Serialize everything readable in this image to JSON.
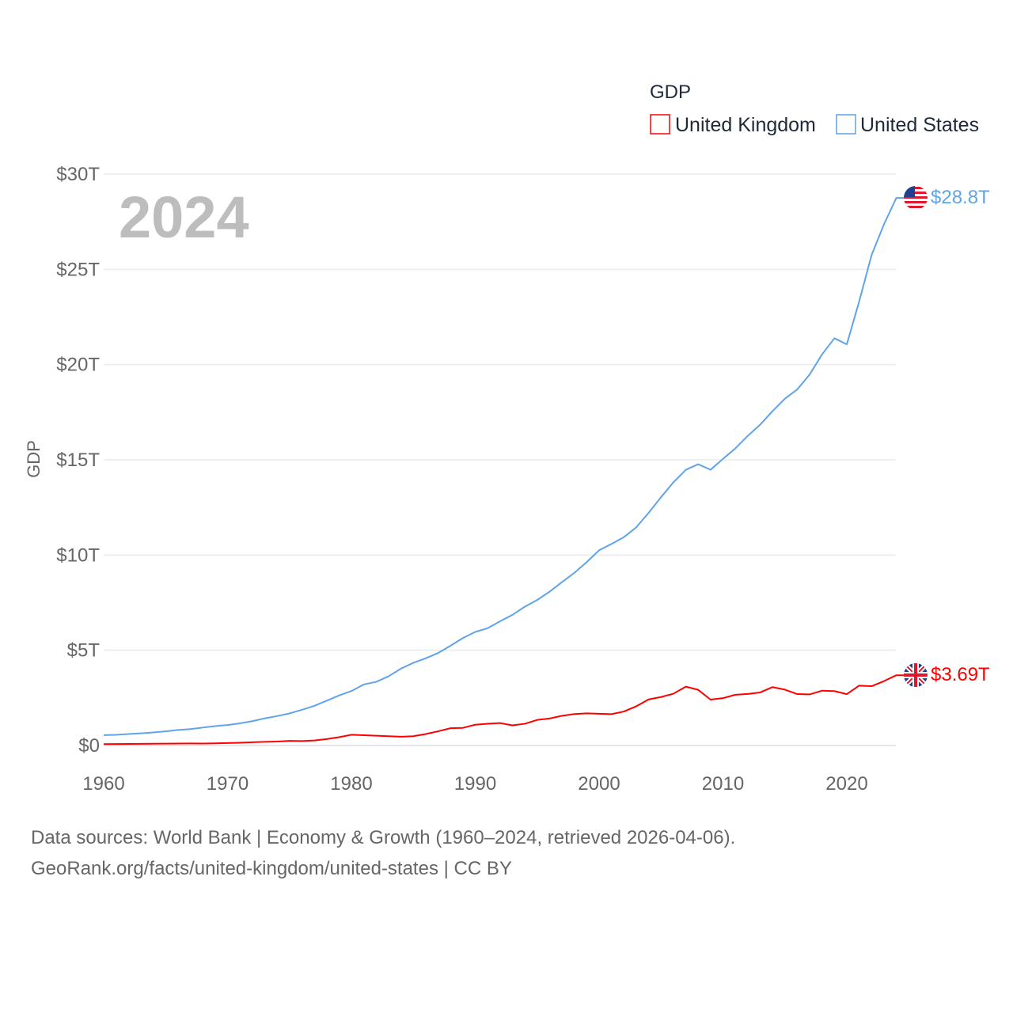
{
  "chart_data": {
    "type": "line",
    "title": "GDP",
    "year_label": "2024",
    "xlabel": "",
    "ylabel": "GDP",
    "xlim": [
      1960,
      2024
    ],
    "ylim": [
      0,
      30
    ],
    "grid": true,
    "legend_title": "GDP",
    "legend_position": "top-right",
    "x_ticks": [
      "1960",
      "1970",
      "1980",
      "1990",
      "2000",
      "2010",
      "2020"
    ],
    "y_ticks": [
      {
        "v": 0,
        "label": "$0"
      },
      {
        "v": 5,
        "label": "$5T"
      },
      {
        "v": 10,
        "label": "$10T"
      },
      {
        "v": 15,
        "label": "$15T"
      },
      {
        "v": 20,
        "label": "$20T"
      },
      {
        "v": 25,
        "label": "$25T"
      },
      {
        "v": 30,
        "label": "$30T"
      }
    ],
    "x_start": 1960,
    "series": [
      {
        "name": "United Kingdom",
        "color": "#ff0000",
        "flag": "uk-flag",
        "end_label": "$3.69T",
        "values": [
          0.073,
          0.077,
          0.081,
          0.086,
          0.094,
          0.1,
          0.106,
          0.111,
          0.104,
          0.113,
          0.131,
          0.148,
          0.17,
          0.193,
          0.206,
          0.242,
          0.233,
          0.263,
          0.336,
          0.438,
          0.564,
          0.54,
          0.515,
          0.489,
          0.461,
          0.489,
          0.601,
          0.745,
          0.91,
          0.927,
          1.093,
          1.142,
          1.179,
          1.061,
          1.14,
          1.344,
          1.419,
          1.56,
          1.653,
          1.687,
          1.666,
          1.646,
          1.785,
          2.058,
          2.422,
          2.544,
          2.719,
          3.091,
          2.923,
          2.411,
          2.486,
          2.664,
          2.708,
          2.786,
          3.066,
          2.934,
          2.7,
          2.683,
          2.879,
          2.858,
          2.697,
          3.143,
          3.114,
          3.38,
          3.69
        ]
      },
      {
        "name": "United States",
        "color": "#5fa4e8",
        "flag": "us-flag",
        "end_label": "$28.8T",
        "values": [
          0.543,
          0.563,
          0.605,
          0.639,
          0.686,
          0.744,
          0.815,
          0.862,
          0.943,
          1.019,
          1.073,
          1.165,
          1.279,
          1.425,
          1.545,
          1.684,
          1.873,
          2.082,
          2.352,
          2.627,
          2.857,
          3.207,
          3.343,
          3.634,
          4.037,
          4.339,
          4.58,
          4.855,
          5.236,
          5.642,
          5.963,
          6.158,
          6.52,
          6.859,
          7.287,
          7.64,
          8.073,
          8.578,
          9.063,
          9.631,
          10.251,
          10.582,
          10.936,
          11.458,
          12.217,
          13.039,
          13.816,
          14.474,
          14.77,
          14.478,
          15.049,
          15.6,
          16.254,
          16.843,
          17.551,
          18.206,
          18.695,
          19.477,
          20.534,
          21.381,
          21.06,
          23.315,
          25.744,
          27.361,
          28.75
        ]
      }
    ]
  },
  "footer": {
    "line1": "Data sources: World Bank | Economy & Growth (1960–2024, retrieved 2026-04-06).",
    "line2": "GeoRank.org/facts/united-kingdom/united-states | CC BY"
  }
}
